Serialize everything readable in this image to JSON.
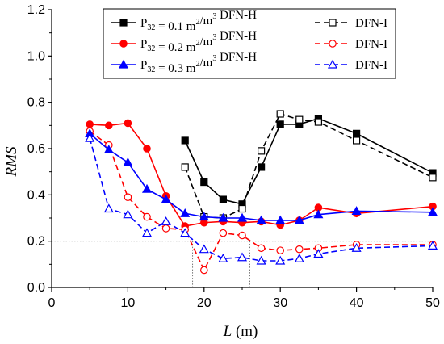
{
  "chart_data": {
    "type": "line",
    "ylabel": "RMS",
    "xlabel_main": "L",
    "xlabel_unit": " (m)",
    "xlim": [
      0,
      50
    ],
    "ylim": [
      0.0,
      1.2
    ],
    "x_ticks": [
      0,
      10,
      20,
      30,
      40,
      50
    ],
    "y_ticks": [
      "0.0",
      "0.2",
      "0.4",
      "0.6",
      "0.8",
      "1.0",
      "1.2"
    ],
    "grid": false,
    "legend_placement": "top-right",
    "legend": [
      {
        "p_label": "P",
        "p_sub": "32",
        "value_text": " = 0.1 m",
        "unit_sup": "2",
        "unit_rest": "/m",
        "unit_sup2": "3",
        "method_h": " DFN-H",
        "method_i": "DFN-I"
      },
      {
        "p_label": "P",
        "p_sub": "32",
        "value_text": " = 0.2 m",
        "unit_sup": "2",
        "unit_rest": "/m",
        "unit_sup2": "3",
        "method_h": " DFN-H",
        "method_i": "DFN-I"
      },
      {
        "p_label": "P",
        "p_sub": "32",
        "value_text": " = 0.3 m",
        "unit_sup": "2",
        "unit_rest": "/m",
        "unit_sup2": "3",
        "method_h": " DFN-H",
        "method_i": "DFN-I"
      }
    ],
    "reference_lines": {
      "horizontal_y": 0.2,
      "vertical_x": [
        18.5,
        26
      ]
    },
    "series": [
      {
        "name": "P32 = 0.1 m2/m3 DFN-H",
        "color": "#000000",
        "marker": "square",
        "filled": true,
        "dashed": false,
        "points": [
          [
            17.5,
            0.635
          ],
          [
            20,
            0.455
          ],
          [
            22.5,
            0.38
          ],
          [
            25,
            0.36
          ],
          [
            27.5,
            0.52
          ],
          [
            30,
            0.705
          ],
          [
            32.5,
            0.705
          ],
          [
            35,
            0.73
          ],
          [
            40,
            0.665
          ],
          [
            50,
            0.495
          ]
        ]
      },
      {
        "name": "P32 = 0.1 m2/m3 DFN-I",
        "color": "#000000",
        "marker": "square",
        "filled": false,
        "dashed": true,
        "points": [
          [
            17.5,
            0.52
          ],
          [
            20,
            0.305
          ],
          [
            22.5,
            0.3
          ],
          [
            25,
            0.34
          ],
          [
            27.5,
            0.59
          ],
          [
            30,
            0.75
          ],
          [
            32.5,
            0.725
          ],
          [
            35,
            0.715
          ],
          [
            40,
            0.635
          ],
          [
            50,
            0.475
          ]
        ]
      },
      {
        "name": "P32 = 0.2 m2/m3 DFN-H",
        "color": "#ff0000",
        "marker": "circle",
        "filled": true,
        "dashed": false,
        "points": [
          [
            5,
            0.705
          ],
          [
            7.5,
            0.7
          ],
          [
            10,
            0.71
          ],
          [
            12.5,
            0.6
          ],
          [
            15,
            0.395
          ],
          [
            17.5,
            0.265
          ],
          [
            20,
            0.28
          ],
          [
            22.5,
            0.285
          ],
          [
            25,
            0.28
          ],
          [
            27.5,
            0.285
          ],
          [
            30,
            0.27
          ],
          [
            32.5,
            0.29
          ],
          [
            35,
            0.345
          ],
          [
            40,
            0.32
          ],
          [
            50,
            0.35
          ]
        ]
      },
      {
        "name": "P32 = 0.2 m2/m3 DFN-I",
        "color": "#ff0000",
        "marker": "circle",
        "filled": false,
        "dashed": true,
        "points": [
          [
            5,
            0.675
          ],
          [
            7.5,
            0.615
          ],
          [
            10,
            0.39
          ],
          [
            12.5,
            0.305
          ],
          [
            15,
            0.255
          ],
          [
            17.5,
            0.25
          ],
          [
            20,
            0.075
          ],
          [
            22.5,
            0.235
          ],
          [
            25,
            0.225
          ],
          [
            27.5,
            0.17
          ],
          [
            30,
            0.16
          ],
          [
            32.5,
            0.165
          ],
          [
            35,
            0.17
          ],
          [
            40,
            0.185
          ],
          [
            50,
            0.185
          ]
        ]
      },
      {
        "name": "P32 = 0.3 m2/m3 DFN-H",
        "color": "#0000ff",
        "marker": "triangle",
        "filled": true,
        "dashed": false,
        "points": [
          [
            5,
            0.665
          ],
          [
            7.5,
            0.595
          ],
          [
            10,
            0.54
          ],
          [
            12.5,
            0.425
          ],
          [
            15,
            0.38
          ],
          [
            17.5,
            0.32
          ],
          [
            20,
            0.305
          ],
          [
            22.5,
            0.3
          ],
          [
            25,
            0.3
          ],
          [
            27.5,
            0.29
          ],
          [
            30,
            0.29
          ],
          [
            32.5,
            0.29
          ],
          [
            35,
            0.315
          ],
          [
            40,
            0.33
          ],
          [
            50,
            0.325
          ]
        ]
      },
      {
        "name": "P32 = 0.3 m2/m3 DFN-I",
        "color": "#0000ff",
        "marker": "triangle",
        "filled": false,
        "dashed": true,
        "points": [
          [
            5,
            0.645
          ],
          [
            7.5,
            0.34
          ],
          [
            10,
            0.315
          ],
          [
            12.5,
            0.235
          ],
          [
            15,
            0.285
          ],
          [
            17.5,
            0.235
          ],
          [
            20,
            0.165
          ],
          [
            22.5,
            0.125
          ],
          [
            25,
            0.13
          ],
          [
            27.5,
            0.115
          ],
          [
            30,
            0.115
          ],
          [
            32.5,
            0.125
          ],
          [
            35,
            0.145
          ],
          [
            40,
            0.17
          ],
          [
            50,
            0.18
          ]
        ]
      }
    ]
  }
}
